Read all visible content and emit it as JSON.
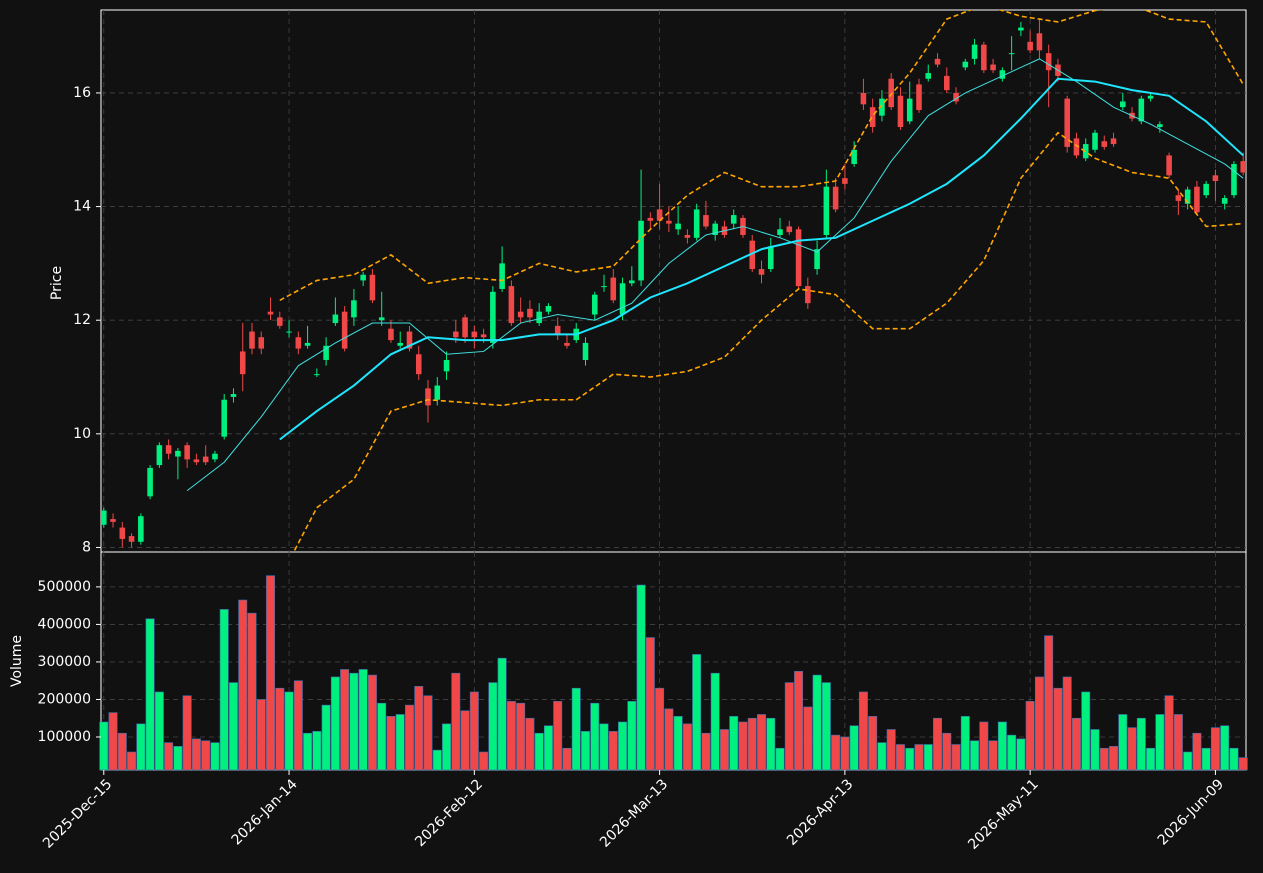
{
  "chart_data": {
    "type": "candlestick",
    "ylabel": "Price",
    "volume_ylabel": "Volume",
    "up_color": "#00f080",
    "down_color": "#f04848",
    "grid": true,
    "xlim": [
      -0.3,
      123.3
    ],
    "ylim": [
      7.92,
      17.46
    ],
    "yticks": [
      8,
      10,
      12,
      14,
      16
    ],
    "volume_ylim": [
      12000,
      593000
    ],
    "volume_yticks": [
      100000,
      200000,
      300000,
      400000,
      500000
    ],
    "xticks": [
      {
        "value": 0,
        "label": "2025-Dec-15"
      },
      {
        "value": 20,
        "label": "2026-Jan-14"
      },
      {
        "value": 40,
        "label": "2026-Feb-12"
      },
      {
        "value": 60,
        "label": "2026-Mar-13"
      },
      {
        "value": 80,
        "label": "2026-Apr-13"
      },
      {
        "value": 100,
        "label": "2026-May-11"
      },
      {
        "value": 120,
        "label": "2026-Jun-09"
      }
    ],
    "ohlc": [
      [
        8.4,
        8.7,
        8.35,
        8.65
      ],
      [
        8.5,
        8.6,
        8.35,
        8.45
      ],
      [
        8.35,
        8.45,
        8.0,
        8.15
      ],
      [
        8.2,
        8.25,
        8.0,
        8.1
      ],
      [
        8.1,
        8.6,
        8.05,
        8.55
      ],
      [
        8.9,
        9.45,
        8.85,
        9.4
      ],
      [
        9.45,
        9.85,
        9.4,
        9.8
      ],
      [
        9.8,
        9.9,
        9.55,
        9.65
      ],
      [
        9.6,
        9.75,
        9.2,
        9.7
      ],
      [
        9.8,
        9.85,
        9.4,
        9.55
      ],
      [
        9.55,
        9.65,
        9.45,
        9.5
      ],
      [
        9.6,
        9.8,
        9.45,
        9.5
      ],
      [
        9.55,
        9.7,
        9.5,
        9.65
      ],
      [
        9.95,
        10.7,
        9.9,
        10.6
      ],
      [
        10.65,
        10.8,
        10.55,
        10.7
      ],
      [
        11.45,
        11.95,
        10.75,
        11.05
      ],
      [
        11.8,
        11.95,
        11.4,
        11.5
      ],
      [
        11.7,
        11.8,
        11.4,
        11.5
      ],
      [
        12.15,
        12.4,
        12.0,
        12.1
      ],
      [
        12.05,
        12.15,
        11.85,
        11.9
      ],
      [
        11.8,
        12.0,
        11.7,
        11.8
      ],
      [
        11.7,
        11.8,
        11.4,
        11.5
      ],
      [
        11.55,
        11.9,
        11.5,
        11.6
      ],
      [
        11.05,
        11.15,
        11.0,
        11.05
      ],
      [
        11.3,
        11.7,
        11.2,
        11.55
      ],
      [
        11.95,
        12.4,
        11.9,
        12.1
      ],
      [
        12.15,
        12.25,
        11.45,
        11.5
      ],
      [
        12.05,
        12.55,
        11.9,
        12.35
      ],
      [
        12.7,
        12.85,
        12.6,
        12.8
      ],
      [
        12.8,
        12.9,
        12.3,
        12.35
      ],
      [
        12.0,
        12.5,
        11.9,
        12.05
      ],
      [
        11.85,
        12.0,
        11.6,
        11.65
      ],
      [
        11.55,
        11.8,
        11.5,
        11.6
      ],
      [
        11.8,
        11.9,
        11.45,
        11.5
      ],
      [
        11.4,
        11.55,
        10.95,
        11.05
      ],
      [
        10.8,
        10.95,
        10.2,
        10.5
      ],
      [
        10.6,
        11.0,
        10.5,
        10.85
      ],
      [
        11.1,
        11.45,
        10.95,
        11.3
      ],
      [
        11.8,
        12.0,
        11.6,
        11.7
      ],
      [
        12.05,
        12.1,
        11.6,
        11.7
      ],
      [
        11.8,
        11.9,
        11.5,
        11.7
      ],
      [
        11.75,
        11.85,
        11.6,
        11.7
      ],
      [
        11.6,
        12.6,
        11.5,
        12.5
      ],
      [
        12.55,
        13.3,
        12.5,
        13.0
      ],
      [
        12.6,
        12.7,
        11.9,
        11.95
      ],
      [
        12.15,
        12.4,
        11.95,
        12.05
      ],
      [
        12.2,
        12.35,
        11.95,
        12.05
      ],
      [
        11.95,
        12.3,
        11.9,
        12.15
      ],
      [
        12.15,
        12.3,
        12.1,
        12.25
      ],
      [
        11.9,
        12.05,
        11.65,
        11.75
      ],
      [
        11.6,
        11.75,
        11.5,
        11.55
      ],
      [
        11.65,
        11.95,
        11.6,
        11.85
      ],
      [
        11.3,
        11.7,
        11.2,
        11.6
      ],
      [
        12.1,
        12.5,
        12.0,
        12.45
      ],
      [
        12.6,
        12.8,
        12.5,
        12.6
      ],
      [
        12.75,
        12.9,
        12.3,
        12.35
      ],
      [
        12.1,
        12.75,
        12.0,
        12.65
      ],
      [
        12.65,
        12.95,
        12.6,
        12.7
      ],
      [
        12.7,
        14.65,
        12.6,
        13.75
      ],
      [
        13.8,
        13.9,
        13.6,
        13.75
      ],
      [
        13.95,
        14.4,
        13.6,
        13.75
      ],
      [
        13.75,
        14.0,
        13.55,
        13.7
      ],
      [
        13.6,
        14.0,
        13.5,
        13.7
      ],
      [
        13.5,
        13.6,
        13.35,
        13.45
      ],
      [
        13.45,
        14.05,
        13.4,
        13.95
      ],
      [
        13.85,
        14.1,
        13.6,
        13.65
      ],
      [
        13.5,
        13.75,
        13.4,
        13.7
      ],
      [
        13.65,
        13.75,
        13.45,
        13.5
      ],
      [
        13.7,
        13.95,
        13.6,
        13.85
      ],
      [
        13.8,
        13.85,
        13.45,
        13.5
      ],
      [
        13.4,
        13.5,
        12.85,
        12.9
      ],
      [
        12.9,
        13.05,
        12.65,
        12.8
      ],
      [
        12.9,
        13.45,
        12.85,
        13.3
      ],
      [
        13.5,
        13.8,
        13.45,
        13.6
      ],
      [
        13.65,
        13.75,
        13.5,
        13.55
      ],
      [
        13.6,
        13.65,
        12.55,
        12.6
      ],
      [
        12.6,
        12.75,
        12.2,
        12.3
      ],
      [
        12.9,
        13.4,
        12.8,
        13.25
      ],
      [
        13.5,
        14.65,
        13.45,
        14.35
      ],
      [
        14.35,
        14.5,
        13.9,
        13.95
      ],
      [
        14.5,
        14.75,
        14.3,
        14.4
      ],
      [
        14.75,
        15.15,
        14.7,
        15.0
      ],
      [
        16.0,
        16.25,
        15.7,
        15.8
      ],
      [
        15.75,
        15.9,
        15.3,
        15.4
      ],
      [
        15.6,
        16.05,
        15.5,
        15.9
      ],
      [
        16.25,
        16.35,
        15.7,
        15.75
      ],
      [
        15.95,
        16.1,
        15.35,
        15.4
      ],
      [
        15.5,
        16.2,
        15.45,
        15.9
      ],
      [
        16.15,
        16.25,
        15.65,
        15.7
      ],
      [
        16.25,
        16.5,
        16.2,
        16.35
      ],
      [
        16.6,
        16.7,
        16.45,
        16.5
      ],
      [
        16.3,
        16.45,
        16.0,
        16.05
      ],
      [
        16.0,
        16.1,
        15.8,
        15.85
      ],
      [
        16.45,
        16.6,
        16.4,
        16.55
      ],
      [
        16.6,
        16.95,
        16.5,
        16.85
      ],
      [
        16.85,
        16.9,
        16.35,
        16.4
      ],
      [
        16.5,
        16.6,
        16.35,
        16.4
      ],
      [
        16.25,
        16.45,
        16.2,
        16.4
      ],
      [
        16.7,
        17.0,
        16.4,
        16.7
      ],
      [
        17.1,
        17.25,
        17.0,
        17.15
      ],
      [
        16.9,
        17.1,
        16.7,
        16.75
      ],
      [
        17.05,
        17.3,
        16.6,
        16.75
      ],
      [
        16.7,
        16.85,
        15.75,
        16.4
      ],
      [
        16.5,
        16.6,
        16.2,
        16.3
      ],
      [
        15.9,
        15.95,
        14.95,
        15.05
      ],
      [
        15.2,
        15.3,
        14.85,
        14.9
      ],
      [
        14.85,
        15.2,
        14.8,
        15.1
      ],
      [
        15.0,
        15.35,
        14.95,
        15.3
      ],
      [
        15.15,
        15.25,
        15.0,
        15.05
      ],
      [
        15.2,
        15.3,
        15.05,
        15.1
      ],
      [
        15.75,
        16.0,
        15.7,
        15.85
      ],
      [
        15.65,
        15.75,
        15.5,
        15.55
      ],
      [
        15.5,
        15.95,
        15.45,
        15.9
      ],
      [
        15.9,
        16.0,
        15.85,
        15.95
      ],
      [
        15.4,
        15.5,
        15.3,
        15.45
      ],
      [
        14.9,
        14.95,
        14.5,
        14.55
      ],
      [
        14.2,
        14.3,
        13.85,
        14.1
      ],
      [
        14.05,
        14.35,
        13.95,
        14.3
      ],
      [
        14.35,
        14.45,
        13.85,
        13.9
      ],
      [
        14.2,
        14.45,
        14.15,
        14.4
      ],
      [
        14.55,
        14.65,
        14.1,
        14.45
      ],
      [
        14.05,
        14.2,
        13.95,
        14.15
      ],
      [
        14.2,
        14.8,
        14.15,
        14.75
      ],
      [
        14.8,
        14.95,
        14.55,
        14.6
      ]
    ],
    "volume": [
      140000,
      165000,
      110000,
      60000,
      135000,
      415000,
      220000,
      85000,
      75000,
      210000,
      95000,
      90000,
      85000,
      440000,
      245000,
      465000,
      430000,
      200000,
      530000,
      230000,
      220000,
      250000,
      110000,
      115000,
      185000,
      260000,
      280000,
      270000,
      280000,
      265000,
      190000,
      155000,
      160000,
      185000,
      235000,
      210000,
      65000,
      135000,
      270000,
      170000,
      220000,
      60000,
      245000,
      310000,
      195000,
      190000,
      150000,
      110000,
      130000,
      195000,
      70000,
      230000,
      115000,
      190000,
      135000,
      115000,
      140000,
      195000,
      505000,
      365000,
      230000,
      175000,
      155000,
      135000,
      320000,
      110000,
      270000,
      120000,
      155000,
      140000,
      150000,
      160000,
      150000,
      70000,
      245000,
      275000,
      180000,
      265000,
      245000,
      105000,
      100000,
      130000,
      220000,
      155000,
      85000,
      120000,
      80000,
      70000,
      80000,
      80000,
      150000,
      110000,
      80000,
      155000,
      90000,
      140000,
      90000,
      140000,
      105000,
      95000,
      195000,
      260000,
      370000,
      230000,
      260000,
      150000,
      220000,
      120000,
      70000,
      75000,
      160000,
      125000,
      150000,
      70000,
      160000,
      210000,
      160000,
      60000,
      110000,
      70000,
      125000,
      130000,
      70000,
      45000
    ],
    "lines": [
      {
        "color": "#40e0e0",
        "width": 1,
        "x": [
          9,
          13,
          17,
          21,
          25,
          29,
          33,
          37,
          41,
          45,
          49,
          53,
          57,
          61,
          65,
          69,
          73,
          77,
          81,
          85,
          89,
          93,
          97,
          101,
          105,
          109,
          113,
          117,
          121,
          123
        ],
        "values": [
          9.0,
          9.5,
          10.3,
          11.2,
          11.6,
          11.95,
          11.95,
          11.4,
          11.45,
          11.95,
          12.1,
          12.0,
          12.3,
          13.0,
          13.5,
          13.65,
          13.45,
          13.2,
          13.8,
          14.8,
          15.6,
          16.0,
          16.3,
          16.6,
          16.2,
          15.75,
          15.45,
          15.1,
          14.75,
          14.5
        ]
      },
      {
        "color": "#1ee6ff",
        "width": 2,
        "x": [
          19,
          23,
          27,
          31,
          35,
          39,
          43,
          47,
          51,
          55,
          59,
          63,
          67,
          71,
          75,
          79,
          83,
          87,
          91,
          95,
          99,
          103,
          107,
          111,
          115,
          119,
          123
        ],
        "values": [
          9.9,
          10.4,
          10.85,
          11.4,
          11.7,
          11.65,
          11.65,
          11.75,
          11.75,
          12.0,
          12.4,
          12.65,
          12.95,
          13.25,
          13.4,
          13.45,
          13.75,
          14.05,
          14.4,
          14.9,
          15.55,
          16.25,
          16.2,
          16.05,
          15.95,
          15.5,
          14.9
        ]
      },
      {
        "color": "#ffa500",
        "width": 1.6,
        "dashed": true,
        "x": [
          19,
          23,
          27,
          31,
          35,
          39,
          43,
          47,
          51,
          55,
          59,
          63,
          67,
          71,
          75,
          79,
          83,
          87,
          91,
          95,
          99,
          103,
          107,
          111,
          115,
          119,
          123
        ],
        "values": [
          12.35,
          12.7,
          12.8,
          13.15,
          12.65,
          12.75,
          12.7,
          13.0,
          12.85,
          12.95,
          13.6,
          14.2,
          14.6,
          14.35,
          14.35,
          14.45,
          15.6,
          16.35,
          17.3,
          17.55,
          17.35,
          17.25,
          17.45,
          17.55,
          17.3,
          17.25,
          16.15
        ]
      },
      {
        "color": "#ffa500",
        "width": 1.6,
        "dashed": true,
        "x": [
          19,
          23,
          27,
          31,
          35,
          39,
          43,
          47,
          51,
          55,
          59,
          63,
          67,
          71,
          75,
          79,
          83,
          87,
          91,
          95,
          99,
          103,
          107,
          111,
          115,
          119,
          123
        ],
        "values": [
          7.45,
          8.7,
          9.2,
          10.4,
          10.6,
          10.55,
          10.5,
          10.6,
          10.6,
          11.05,
          11.0,
          11.1,
          11.35,
          12.0,
          12.55,
          12.45,
          11.85,
          11.85,
          12.3,
          13.05,
          14.5,
          15.3,
          14.85,
          14.6,
          14.5,
          13.65,
          13.7
        ]
      }
    ]
  }
}
